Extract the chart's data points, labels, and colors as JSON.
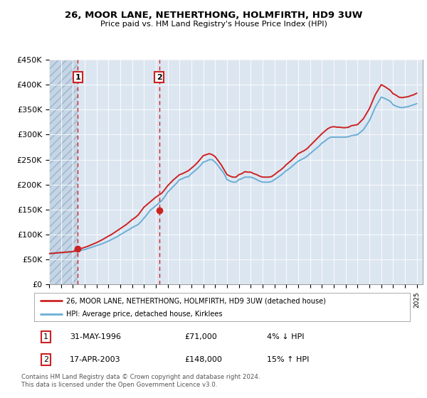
{
  "title": "26, MOOR LANE, NETHERTHONG, HOLMFIRTH, HD9 3UW",
  "subtitle": "Price paid vs. HM Land Registry's House Price Index (HPI)",
  "ylim": [
    0,
    450000
  ],
  "yticks": [
    0,
    50000,
    100000,
    150000,
    200000,
    250000,
    300000,
    350000,
    400000,
    450000
  ],
  "ytick_labels": [
    "£0",
    "£50K",
    "£100K",
    "£150K",
    "£200K",
    "£250K",
    "£300K",
    "£350K",
    "£400K",
    "£450K"
  ],
  "background_color": "#ffffff",
  "plot_bg_color": "#dce6f1",
  "legend_line1": "26, MOOR LANE, NETHERTHONG, HOLMFIRTH, HD9 3UW (detached house)",
  "legend_line2": "HPI: Average price, detached house, Kirklees",
  "sale1_date": "31-MAY-1996",
  "sale1_price": 71000,
  "sale1_pct": "4% ↓ HPI",
  "sale2_date": "17-APR-2003",
  "sale2_price": 148000,
  "sale2_pct": "15% ↑ HPI",
  "footnote": "Contains HM Land Registry data © Crown copyright and database right 2024.\nThis data is licensed under the Open Government Licence v3.0.",
  "sale1_x": 1996.42,
  "sale2_x": 2003.29,
  "hpi_color": "#6baed6",
  "price_color": "#cc2222",
  "marker_color": "#cc2222",
  "vline_color": "#cc2222",
  "xlim_left": 1994.0,
  "xlim_right": 2025.5,
  "hpi_data_x": [
    1994.0,
    1994.25,
    1994.5,
    1994.75,
    1995.0,
    1995.25,
    1995.5,
    1995.75,
    1996.0,
    1996.25,
    1996.5,
    1996.75,
    1997.0,
    1997.25,
    1997.5,
    1997.75,
    1998.0,
    1998.25,
    1998.5,
    1998.75,
    1999.0,
    1999.25,
    1999.5,
    1999.75,
    2000.0,
    2000.25,
    2000.5,
    2000.75,
    2001.0,
    2001.25,
    2001.5,
    2001.75,
    2002.0,
    2002.25,
    2002.5,
    2002.75,
    2003.0,
    2003.25,
    2003.5,
    2003.75,
    2004.0,
    2004.25,
    2004.5,
    2004.75,
    2005.0,
    2005.25,
    2005.5,
    2005.75,
    2006.0,
    2006.25,
    2006.5,
    2006.75,
    2007.0,
    2007.25,
    2007.5,
    2007.75,
    2008.0,
    2008.25,
    2008.5,
    2008.75,
    2009.0,
    2009.25,
    2009.5,
    2009.75,
    2010.0,
    2010.25,
    2010.5,
    2010.75,
    2011.0,
    2011.25,
    2011.5,
    2011.75,
    2012.0,
    2012.25,
    2012.5,
    2012.75,
    2013.0,
    2013.25,
    2013.5,
    2013.75,
    2014.0,
    2014.25,
    2014.5,
    2014.75,
    2015.0,
    2015.25,
    2015.5,
    2015.75,
    2016.0,
    2016.25,
    2016.5,
    2016.75,
    2017.0,
    2017.25,
    2017.5,
    2017.75,
    2018.0,
    2018.25,
    2018.5,
    2018.75,
    2019.0,
    2019.25,
    2019.5,
    2019.75,
    2020.0,
    2020.25,
    2020.5,
    2020.75,
    2021.0,
    2021.25,
    2021.5,
    2021.75,
    2022.0,
    2022.25,
    2022.5,
    2022.75,
    2023.0,
    2023.25,
    2023.5,
    2023.75,
    2024.0,
    2024.25,
    2024.5,
    2024.75,
    2025.0
  ],
  "hpi_data_y": [
    62000,
    62500,
    63000,
    63500,
    64000,
    64500,
    65000,
    65500,
    66000,
    66500,
    67500,
    69000,
    70000,
    72000,
    74000,
    76000,
    78000,
    80000,
    82000,
    84500,
    87000,
    90000,
    93000,
    96000,
    100000,
    103000,
    107000,
    110000,
    114000,
    117000,
    120000,
    126000,
    133000,
    140000,
    148000,
    153000,
    158000,
    163000,
    168000,
    176000,
    185000,
    191000,
    197000,
    203000,
    210000,
    212000,
    215000,
    216000,
    222000,
    227000,
    232000,
    238000,
    245000,
    247000,
    250000,
    250000,
    245000,
    238000,
    230000,
    222000,
    210000,
    207000,
    205000,
    205000,
    210000,
    212000,
    215000,
    215000,
    215000,
    213000,
    210000,
    207000,
    205000,
    205000,
    205000,
    206000,
    210000,
    214000,
    218000,
    223000,
    228000,
    232000,
    237000,
    242000,
    247000,
    250000,
    253000,
    257000,
    262000,
    267000,
    272000,
    277000,
    283000,
    287000,
    292000,
    295000,
    295000,
    295000,
    295000,
    295000,
    295000,
    296000,
    298000,
    299000,
    300000,
    305000,
    310000,
    319000,
    328000,
    341000,
    355000,
    365000,
    375000,
    373000,
    370000,
    367000,
    360000,
    357000,
    355000,
    354000,
    355000,
    356000,
    358000,
    360000,
    362000
  ],
  "price_data_x": [
    1994.0,
    1994.25,
    1994.5,
    1994.75,
    1995.0,
    1995.25,
    1995.5,
    1995.75,
    1996.0,
    1996.25,
    1996.5,
    1996.75,
    1997.0,
    1997.25,
    1997.5,
    1997.75,
    1998.0,
    1998.25,
    1998.5,
    1998.75,
    1999.0,
    1999.25,
    1999.5,
    1999.75,
    2000.0,
    2000.25,
    2000.5,
    2000.75,
    2001.0,
    2001.25,
    2001.5,
    2001.75,
    2002.0,
    2002.25,
    2002.5,
    2002.75,
    2003.0,
    2003.25,
    2003.5,
    2003.75,
    2004.0,
    2004.25,
    2004.5,
    2004.75,
    2005.0,
    2005.25,
    2005.5,
    2005.75,
    2006.0,
    2006.25,
    2006.5,
    2006.75,
    2007.0,
    2007.25,
    2007.5,
    2007.75,
    2008.0,
    2008.25,
    2008.5,
    2008.75,
    2009.0,
    2009.25,
    2009.5,
    2009.75,
    2010.0,
    2010.25,
    2010.5,
    2010.75,
    2011.0,
    2011.25,
    2011.5,
    2011.75,
    2012.0,
    2012.25,
    2012.5,
    2012.75,
    2013.0,
    2013.25,
    2013.5,
    2013.75,
    2014.0,
    2014.25,
    2014.5,
    2014.75,
    2015.0,
    2015.25,
    2015.5,
    2015.75,
    2016.0,
    2016.25,
    2016.5,
    2016.75,
    2017.0,
    2017.25,
    2017.5,
    2017.75,
    2018.0,
    2018.25,
    2018.5,
    2018.75,
    2019.0,
    2019.25,
    2019.5,
    2019.75,
    2020.0,
    2020.25,
    2020.5,
    2020.75,
    2021.0,
    2021.25,
    2021.5,
    2021.75,
    2022.0,
    2022.25,
    2022.5,
    2022.75,
    2023.0,
    2023.25,
    2023.5,
    2023.75,
    2024.0,
    2024.25,
    2024.5,
    2024.75,
    2025.0
  ],
  "price_data_y": [
    62000,
    62500,
    63000,
    63500,
    64000,
    64500,
    65000,
    65500,
    66000,
    68000,
    71000,
    72500,
    74500,
    76500,
    79000,
    81500,
    84000,
    87000,
    90000,
    93500,
    97000,
    100000,
    104000,
    108000,
    112000,
    116000,
    120000,
    125000,
    130000,
    134000,
    139000,
    147000,
    155000,
    160000,
    165000,
    170000,
    175000,
    179000,
    183000,
    190000,
    198000,
    204000,
    210000,
    215000,
    220000,
    222000,
    225000,
    228000,
    233000,
    238000,
    244000,
    251000,
    258000,
    260000,
    262000,
    260000,
    256000,
    248000,
    240000,
    230000,
    220000,
    217000,
    215000,
    215000,
    220000,
    222000,
    226000,
    225000,
    225000,
    222000,
    220000,
    217000,
    215000,
    215000,
    215000,
    216000,
    220000,
    225000,
    229000,
    234000,
    240000,
    245000,
    250000,
    256000,
    262000,
    265000,
    268000,
    272000,
    278000,
    284000,
    290000,
    296000,
    302000,
    307000,
    312000,
    315000,
    316000,
    315000,
    315000,
    314000,
    314000,
    315000,
    318000,
    319000,
    320000,
    326000,
    332000,
    342000,
    352000,
    366000,
    380000,
    390000,
    400000,
    397000,
    393000,
    389000,
    382000,
    379000,
    375000,
    374000,
    375000,
    376000,
    378000,
    380000,
    383000
  ]
}
